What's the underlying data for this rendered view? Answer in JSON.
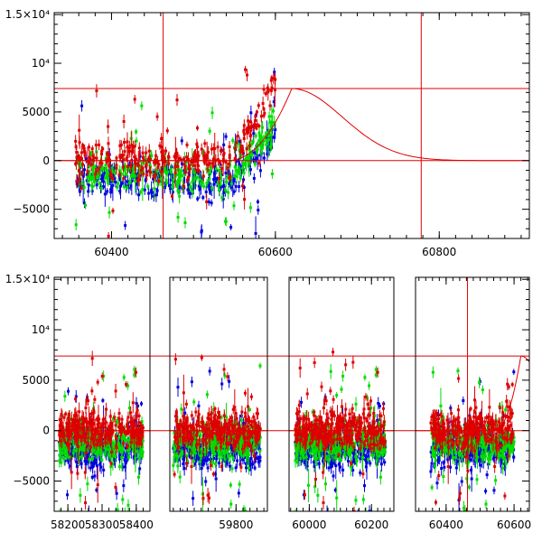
{
  "chart_data": [
    {
      "type": "scatter",
      "title": "",
      "xlabel": "",
      "ylabel": "",
      "xlim": [
        60330,
        60910
      ],
      "ylim": [
        -8000,
        15200
      ],
      "x_ticks": [
        60400,
        60600,
        60800
      ],
      "x_tick_labels": [
        "60400",
        "60600",
        "60800"
      ],
      "y_ticks": [
        -5000,
        0,
        5000,
        10000,
        15000
      ],
      "y_tick_labels": [
        "−5000",
        "0",
        "5000",
        "10⁴",
        "1.5×10⁴"
      ],
      "hlines": [
        0,
        7400
      ],
      "vlines": [
        60463,
        60778
      ],
      "model_curve": {
        "color": "#e00000",
        "peak_x": 60620,
        "peak_y": 7400,
        "rise_start": 60540,
        "decay_end": 60780
      },
      "series": [
        {
          "color": "#0000dd",
          "x_range": [
            60355,
            60600
          ],
          "baseline": [
            [
              60355,
              -1600
            ],
            [
              60450,
              -2000
            ],
            [
              60540,
              -2400
            ],
            [
              60600,
              1500
            ]
          ]
        },
        {
          "color": "#00dd00",
          "x_range": [
            60355,
            60600
          ],
          "baseline": [
            [
              60355,
              -900
            ],
            [
              60450,
              -1300
            ],
            [
              60540,
              -1800
            ],
            [
              60600,
              2500
            ]
          ]
        },
        {
          "color": "#dd0000",
          "x_range": [
            60355,
            60600
          ],
          "baseline": [
            [
              60355,
              200
            ],
            [
              60450,
              0
            ],
            [
              60540,
              300
            ],
            [
              60600,
              5500
            ]
          ]
        }
      ]
    },
    {
      "type": "scatter",
      "title": "",
      "xlabel": "",
      "ylabel": "",
      "ylim": [
        -8000,
        15200
      ],
      "y_ticks": [
        -5000,
        0,
        5000,
        10000,
        15000
      ],
      "y_tick_labels": [
        "−5000",
        "0",
        "5000",
        "10⁴",
        "1.5×10⁴"
      ],
      "hlines": [
        0,
        7400
      ],
      "vlines": [
        60463
      ],
      "broken_x_axis": true,
      "segments": [
        {
          "xlim": [
            58160,
            58440
          ],
          "x_ticks": [
            58200,
            58300,
            58400
          ],
          "x_tick_labels": [
            "58200",
            "58300",
            "58400"
          ],
          "data_range": [
            58175,
            58420
          ]
        },
        {
          "xlim": [
            59610,
            59890
          ],
          "x_ticks": [
            59800
          ],
          "x_tick_labels": [
            "59800"
          ],
          "data_range": [
            59620,
            59870
          ]
        },
        {
          "xlim": [
            59935,
            60272
          ],
          "x_ticks": [
            60000,
            60200
          ],
          "x_tick_labels": [
            "60000",
            "60200"
          ],
          "data_range": [
            59955,
            60245
          ]
        },
        {
          "xlim": [
            60310,
            60645
          ],
          "x_ticks": [
            60400,
            60600
          ],
          "x_tick_labels": [
            "60400",
            "60600"
          ],
          "data_range": [
            60355,
            60600
          ]
        }
      ],
      "model_curve": {
        "color": "#e00000",
        "peak_x": 60620,
        "peak_y": 7400,
        "rise_start": 60540,
        "decay_end": 60780
      },
      "series": [
        {
          "color": "#0000dd",
          "baseline": -1800
        },
        {
          "color": "#00dd00",
          "baseline": -1200
        },
        {
          "color": "#dd0000",
          "baseline": 100
        }
      ]
    }
  ]
}
